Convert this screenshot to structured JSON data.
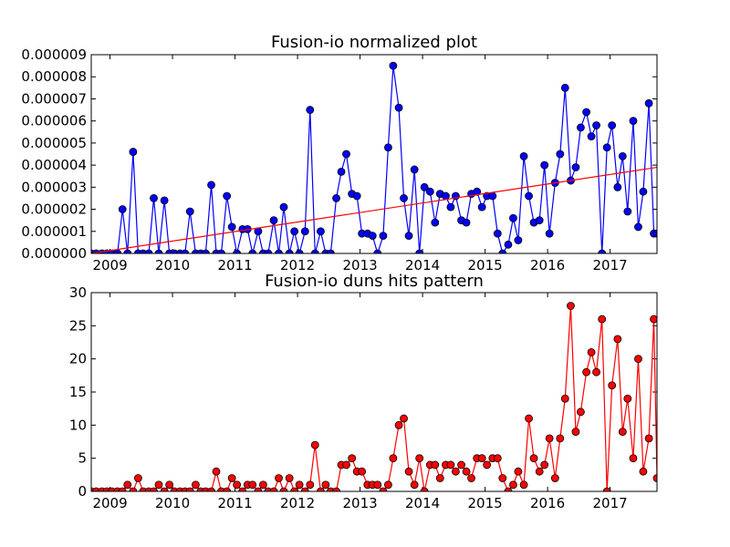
{
  "chart_data": [
    {
      "type": "line",
      "title": "Fusion-io normalized plot",
      "xlabel": "",
      "ylabel": "",
      "xlim": [
        2008.7,
        2017.75
      ],
      "ylim": [
        0,
        9e-06
      ],
      "grid": false,
      "x_tick_values": [
        2009,
        2010,
        2011,
        2012,
        2013,
        2014,
        2015,
        2016,
        2017
      ],
      "x_tick_labels": [
        "2009",
        "2010",
        "2011",
        "2012",
        "2013",
        "2014",
        "2015",
        "2016",
        "2017"
      ],
      "y_tick_values": [
        0,
        1e-06,
        2e-06,
        3e-06,
        4e-06,
        5e-06,
        6e-06,
        7e-06,
        8e-06,
        9e-06
      ],
      "y_tick_labels": [
        "0.000000",
        "0.000001",
        "0.000002",
        "0.000003",
        "0.000004",
        "0.000005",
        "0.000006",
        "0.000007",
        "0.000008",
        "0.000009"
      ],
      "colors": {
        "points": "#0000ff",
        "trend": "#ff0000"
      },
      "series": [
        {
          "color": "#0000ff",
          "marker": "circle",
          "x": [
            2008.7,
            2008.78,
            2008.87,
            2008.95,
            2009.03,
            2009.12,
            2009.2,
            2009.28,
            2009.37,
            2009.45,
            2009.53,
            2009.62,
            2009.7,
            2009.78,
            2009.87,
            2009.95,
            2010.03,
            2010.12,
            2010.2,
            2010.28,
            2010.37,
            2010.45,
            2010.53,
            2010.62,
            2010.7,
            2010.78,
            2010.87,
            2010.95,
            2011.03,
            2011.12,
            2011.2,
            2011.28,
            2011.37,
            2011.45,
            2011.53,
            2011.62,
            2011.7,
            2011.78,
            2011.87,
            2011.95,
            2012.03,
            2012.12,
            2012.2,
            2012.28,
            2012.37,
            2012.45,
            2012.53,
            2012.62,
            2012.7,
            2012.78,
            2012.87,
            2012.95,
            2013.03,
            2013.12,
            2013.2,
            2013.28,
            2013.37,
            2013.45,
            2013.53,
            2013.62,
            2013.7,
            2013.78,
            2013.87,
            2013.95,
            2014.03,
            2014.12,
            2014.2,
            2014.28,
            2014.37,
            2014.45,
            2014.53,
            2014.62,
            2014.7,
            2014.78,
            2014.87,
            2014.95,
            2015.03,
            2015.12,
            2015.2,
            2015.28,
            2015.37,
            2015.45,
            2015.53,
            2015.62,
            2015.7,
            2015.78,
            2015.87,
            2015.95,
            2016.03,
            2016.12,
            2016.2,
            2016.28,
            2016.37,
            2016.45,
            2016.53,
            2016.62,
            2016.7,
            2016.78,
            2016.87,
            2016.95,
            2017.03,
            2017.12,
            2017.2,
            2017.28,
            2017.37,
            2017.45,
            2017.53,
            2017.62,
            2017.7,
            2017.75
          ],
          "y": [
            0,
            0,
            0,
            0,
            0,
            0,
            2e-06,
            0,
            4.6e-06,
            0,
            0,
            0,
            2.5e-06,
            0,
            2.4e-06,
            0,
            0,
            0,
            0,
            1.9e-06,
            0,
            0,
            0,
            3.1e-06,
            0,
            0,
            2.6e-06,
            1.2e-06,
            0,
            1.1e-06,
            1.1e-06,
            0,
            1e-06,
            0,
            0,
            1.5e-06,
            0,
            2.1e-06,
            0,
            1e-06,
            0,
            1e-06,
            6.5e-06,
            0,
            1e-06,
            0,
            0,
            2.5e-06,
            3.7e-06,
            4.5e-06,
            2.7e-06,
            2.6e-06,
            9e-07,
            9e-07,
            8e-07,
            0,
            8e-07,
            4.8e-06,
            8.5e-06,
            6.6e-06,
            2.5e-06,
            8e-07,
            3.8e-06,
            0,
            3e-06,
            2.8e-06,
            1.4e-06,
            2.7e-06,
            2.6e-06,
            2.1e-06,
            2.6e-06,
            1.5e-06,
            1.4e-06,
            2.7e-06,
            2.8e-06,
            2.1e-06,
            2.6e-06,
            2.6e-06,
            9e-07,
            0,
            4e-07,
            1.6e-06,
            6e-07,
            4.4e-06,
            2.6e-06,
            1.4e-06,
            1.5e-06,
            4e-06,
            9e-07,
            3.2e-06,
            4.5e-06,
            7.5e-06,
            3.3e-06,
            3.9e-06,
            5.7e-06,
            6.4e-06,
            5.3e-06,
            5.8e-06,
            0,
            4.8e-06,
            5.8e-06,
            3e-06,
            4.4e-06,
            1.9e-06,
            6e-06,
            1.2e-06,
            2.8e-06,
            6.8e-06,
            9e-07,
            9e-07
          ]
        },
        {
          "type": "trend-line",
          "color": "#ff0000",
          "x": [
            2008.7,
            2017.75
          ],
          "y": [
            0,
            3.9e-06
          ]
        }
      ]
    },
    {
      "type": "line",
      "title": "Fusion-io duns hits pattern",
      "xlabel": "",
      "ylabel": "",
      "xlim": [
        2008.7,
        2017.75
      ],
      "ylim": [
        0,
        30
      ],
      "grid": false,
      "x_tick_values": [
        2009,
        2010,
        2011,
        2012,
        2013,
        2014,
        2015,
        2016,
        2017
      ],
      "x_tick_labels": [
        "2009",
        "2010",
        "2011",
        "2012",
        "2013",
        "2014",
        "2015",
        "2016",
        "2017"
      ],
      "y_tick_values": [
        0,
        5,
        10,
        15,
        20,
        25,
        30
      ],
      "y_tick_labels": [
        "0",
        "5",
        "10",
        "15",
        "20",
        "25",
        "30"
      ],
      "colors": {
        "points": "#ff0000",
        "line": "#ff0000"
      },
      "series": [
        {
          "color": "#ff0000",
          "marker": "circle",
          "x": [
            2008.7,
            2008.78,
            2008.87,
            2008.95,
            2009.03,
            2009.12,
            2009.2,
            2009.28,
            2009.37,
            2009.45,
            2009.53,
            2009.62,
            2009.7,
            2009.78,
            2009.87,
            2009.95,
            2010.03,
            2010.12,
            2010.2,
            2010.28,
            2010.37,
            2010.45,
            2010.53,
            2010.62,
            2010.7,
            2010.78,
            2010.87,
            2010.95,
            2011.03,
            2011.12,
            2011.2,
            2011.28,
            2011.37,
            2011.45,
            2011.53,
            2011.62,
            2011.7,
            2011.78,
            2011.87,
            2011.95,
            2012.03,
            2012.12,
            2012.2,
            2012.28,
            2012.37,
            2012.45,
            2012.53,
            2012.62,
            2012.7,
            2012.78,
            2012.87,
            2012.95,
            2013.03,
            2013.12,
            2013.2,
            2013.28,
            2013.37,
            2013.45,
            2013.53,
            2013.62,
            2013.7,
            2013.78,
            2013.87,
            2013.95,
            2014.03,
            2014.12,
            2014.2,
            2014.28,
            2014.37,
            2014.45,
            2014.53,
            2014.62,
            2014.7,
            2014.78,
            2014.87,
            2014.95,
            2015.03,
            2015.12,
            2015.2,
            2015.28,
            2015.37,
            2015.45,
            2015.53,
            2015.62,
            2015.7,
            2015.78,
            2015.87,
            2015.95,
            2016.03,
            2016.12,
            2016.2,
            2016.28,
            2016.37,
            2016.45,
            2016.53,
            2016.62,
            2016.7,
            2016.78,
            2016.87,
            2016.95,
            2017.03,
            2017.12,
            2017.2,
            2017.28,
            2017.37,
            2017.45,
            2017.53,
            2017.62,
            2017.7,
            2017.75
          ],
          "y": [
            0,
            0,
            0,
            0,
            0,
            0,
            0,
            1,
            0,
            2,
            0,
            0,
            0,
            1,
            0,
            1,
            0,
            0,
            0,
            0,
            1,
            0,
            0,
            0,
            3,
            0,
            0,
            2,
            1,
            0,
            1,
            1,
            0,
            1,
            0,
            0,
            2,
            0,
            2,
            0,
            1,
            0,
            1,
            7,
            0,
            1,
            0,
            0,
            4,
            4,
            5,
            3,
            3,
            1,
            1,
            1,
            0,
            1,
            5,
            10,
            11,
            3,
            1,
            5,
            0,
            4,
            4,
            2,
            4,
            4,
            3,
            4,
            3,
            2,
            5,
            5,
            4,
            5,
            5,
            2,
            0,
            1,
            3,
            1,
            11,
            5,
            3,
            4,
            8,
            2,
            8,
            14,
            28,
            9,
            12,
            18,
            21,
            18,
            26,
            0,
            16,
            23,
            9,
            14,
            5,
            20,
            3,
            8,
            26,
            2
          ]
        }
      ]
    }
  ]
}
